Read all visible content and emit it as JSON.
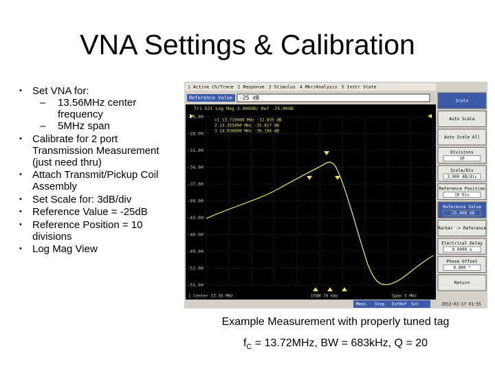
{
  "title": "VNA Settings & Calibration",
  "bullets": [
    {
      "text": "Set VNA for:",
      "sub": [
        "13.56MHz center frequency",
        "5MHz span"
      ]
    },
    {
      "text": "Calibrate for 2 port Transmission Measurement (just need thru)"
    },
    {
      "text": "Attach Transmit/Pickup Coil Assembly"
    },
    {
      "text": "Set Scale for: 3dB/div"
    },
    {
      "text": "Reference Value = -25dB"
    },
    {
      "text": "Reference Position = 10 divisions"
    },
    {
      "text": "Log Mag View"
    }
  ],
  "screenshot": {
    "menu": [
      "1 Active Ch/Trace",
      "2 Response",
      "3 Stimulus",
      "4 Mkr/Analysis",
      "5 Instr State"
    ],
    "ref_label": "Reference Value",
    "ref_input": "-25 dB",
    "trace_header": "Tr1 S21 Log Mag 3.000dB/ Ref -25.00dB",
    "markers": [
      ">1  13.719000 MHz  -32.835 dB",
      " 2  13.355000 MHz  -35.817 dB",
      " 3  14.038000 MHz  -36.194 dB"
    ],
    "y_labels": [
      "-25.00",
      "-28.00",
      "-31.00",
      "-34.00",
      "-37.00",
      "-40.00",
      "-43.00",
      "-46.00",
      "-49.00",
      "-52.00",
      "-55.00"
    ],
    "footer": [
      "1 Center 13.56 MHz",
      "IFBW 70 kHz",
      "Span 5 MHz"
    ],
    "status": [
      "Meas",
      "Stop",
      "ExtRef",
      "Svc",
      "2012-02-17 01:55"
    ],
    "softkeys": [
      {
        "label": "Scale"
      },
      {
        "label": "Auto Scale"
      },
      {
        "label": "Auto Scale All"
      },
      {
        "label": "Divisions",
        "value": "10"
      },
      {
        "label": "Scale/Div",
        "value": "3.000 dB/div"
      },
      {
        "label": "Reference Position",
        "value": "10 Div"
      },
      {
        "label": "Reference Value",
        "value": "-25.000 dB"
      },
      {
        "label": "Marker -> Reference"
      },
      {
        "label": "Electrical Delay",
        "value": "0.0000 s"
      },
      {
        "label": "Phase Offset",
        "value": "0.000 °"
      },
      {
        "label": "Return"
      }
    ]
  },
  "caption": "Example Measurement with properly tuned tag",
  "result": {
    "prefix": "f",
    "subscript": "C",
    "text": " = 13.72MHz, BW = 683kHz, Q = 20"
  }
}
